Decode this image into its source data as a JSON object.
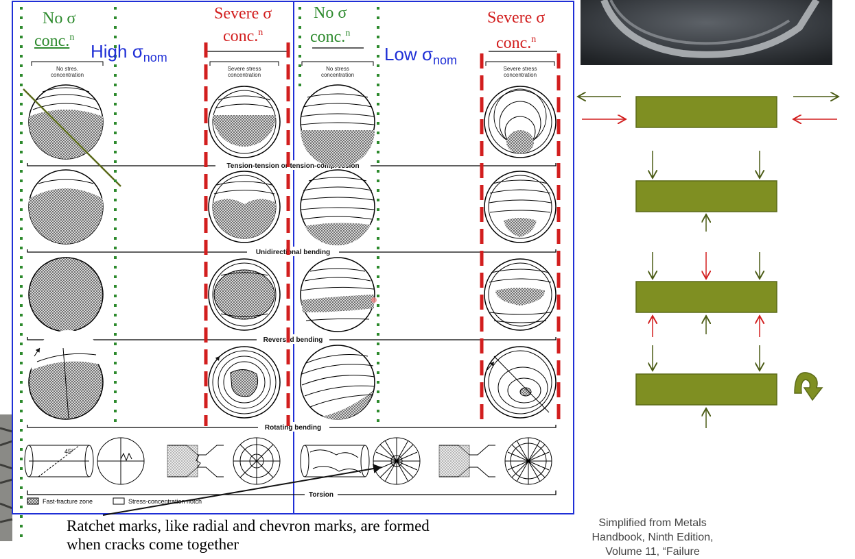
{
  "headers": {
    "left_no": "No σ",
    "left_conc": "conc.",
    "left_sup": "n",
    "left_severe": "Severe σ",
    "left_severe_conc": "conc.",
    "left_severe_sup": "n",
    "right_no": "No σ",
    "right_conc": "conc.",
    "right_sup": "n",
    "right_severe": "Severe σ",
    "right_severe_conc": "conc.",
    "right_severe_sup": "n",
    "high": "High σ",
    "high_sub": "nom",
    "low": "Low σ",
    "low_sub": "nom"
  },
  "figure": {
    "col_no_stress": [
      "No stress",
      "concentration"
    ],
    "col_no_stress_left": [
      "No stres.",
      "concentration"
    ],
    "col_severe": [
      "Severe stress",
      "concentration"
    ],
    "row_labels": [
      "Tension-tension or tension-compression",
      "Unidirectional bending",
      "Reversed bending",
      "Rotating bending",
      "Torsion"
    ],
    "torsion_angle": "45°",
    "legend_fast": "Fast-fracture zone",
    "legend_notch": "Stress-concentration notch"
  },
  "caption": [
    "Ratchet marks, like radial and chevron marks, are formed",
    "when cracks come together"
  ],
  "citation": [
    "Simplified from Metals",
    "Handbook, Ninth Edition,",
    "Volume 11, “Failure"
  ],
  "colors": {
    "green_marker": "#2d8a2d",
    "red_marker": "#d21e1e",
    "blue_frame": "#1f2fd6",
    "olive_bar": "#7f8f22",
    "olive_arrow": "#4a5a14"
  }
}
